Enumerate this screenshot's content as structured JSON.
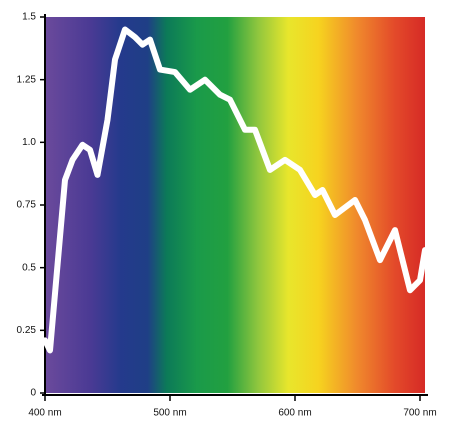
{
  "chart_data": {
    "type": "line",
    "x": [
      400,
      404,
      416,
      422,
      430,
      436,
      442,
      450,
      456,
      464,
      472,
      478,
      484,
      492,
      504,
      516,
      528,
      540,
      548,
      560,
      568,
      580,
      592,
      604,
      616,
      622,
      632,
      648,
      656,
      668,
      680,
      692,
      700,
      704
    ],
    "series": [
      {
        "color": "#ffffff",
        "values": [
          0.21,
          0.17,
          0.85,
          0.93,
          0.99,
          0.97,
          0.87,
          1.09,
          1.33,
          1.45,
          1.42,
          1.39,
          1.41,
          1.29,
          1.28,
          1.21,
          1.25,
          1.19,
          1.17,
          1.05,
          1.05,
          0.89,
          0.93,
          0.89,
          0.79,
          0.81,
          0.71,
          0.77,
          0.69,
          0.53,
          0.65,
          0.41,
          0.45,
          0.57
        ]
      }
    ],
    "xlim": [
      400,
      704
    ],
    "xticks": [
      {
        "value": 400,
        "label": "400 nm"
      },
      {
        "value": 500,
        "label": "500 nm"
      },
      {
        "value": 600,
        "label": "600 nm"
      },
      {
        "value": 700,
        "label": "700 nm"
      }
    ],
    "ylim": [
      0,
      1.5
    ],
    "yticks": [
      0,
      0.25,
      0.5,
      0.75,
      {
        "value": 1,
        "label": "1.0"
      },
      1.25,
      1.5
    ]
  }
}
